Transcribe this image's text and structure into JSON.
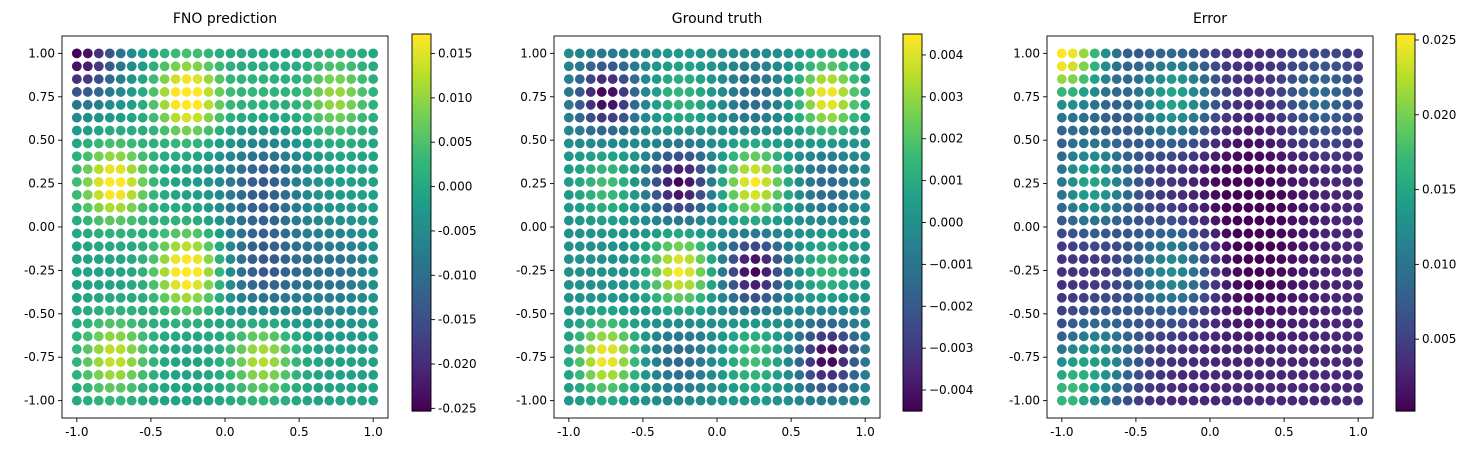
{
  "chart_data": [
    {
      "type": "scatter",
      "title": "FNO prediction",
      "xlabel": "",
      "ylabel": "",
      "grid": false,
      "grid_points": 28,
      "xlim": [
        -1.1,
        1.1
      ],
      "ylim": [
        -1.1,
        1.1
      ],
      "xticks": [
        "-1.0",
        "-0.5",
        "0.0",
        "0.5",
        "1.0"
      ],
      "yticks": [
        "1.00",
        "0.75",
        "0.50",
        "0.25",
        "0.00",
        "-0.25",
        "-0.50",
        "-0.75",
        "-1.00"
      ],
      "colormap": "viridis",
      "colorbar": {
        "range": [
          -0.0253,
          0.0172
        ],
        "ticks": [
          "0.015",
          "0.010",
          "0.005",
          "0.000",
          "-0.005",
          "-0.010",
          "-0.015",
          "-0.020",
          "-0.025"
        ]
      },
      "field": {
        "base": -0.001,
        "bumps": [
          {
            "x": -0.25,
            "y": 0.75,
            "amp": 0.022,
            "sigma": 0.15
          },
          {
            "x": -0.75,
            "y": 0.25,
            "amp": 0.02,
            "sigma": 0.15
          },
          {
            "x": -0.25,
            "y": -0.25,
            "amp": 0.022,
            "sigma": 0.15
          },
          {
            "x": -0.75,
            "y": -0.75,
            "amp": 0.015,
            "sigma": 0.15
          },
          {
            "x": 0.25,
            "y": -0.75,
            "amp": 0.014,
            "sigma": 0.15
          },
          {
            "x": 0.75,
            "y": 0.75,
            "amp": 0.012,
            "sigma": 0.15
          },
          {
            "x": 0.25,
            "y": 0.75,
            "amp": 0.004,
            "sigma": 0.15
          },
          {
            "x": 0.25,
            "y": 0.25,
            "amp": -0.012,
            "sigma": 0.2
          },
          {
            "x": 0.25,
            "y": -0.25,
            "amp": -0.012,
            "sigma": 0.2
          },
          {
            "x": 0.75,
            "y": -0.25,
            "amp": -0.008,
            "sigma": 0.2
          },
          {
            "x": -1.0,
            "y": 1.0,
            "amp": -0.024,
            "sigma": 0.2
          }
        ]
      }
    },
    {
      "type": "scatter",
      "title": "Ground truth",
      "xlabel": "",
      "ylabel": "",
      "grid": false,
      "grid_points": 28,
      "xlim": [
        -1.1,
        1.1
      ],
      "ylim": [
        -1.1,
        1.1
      ],
      "xticks": [
        "-1.0",
        "-0.5",
        "0.0",
        "0.5",
        "1.0"
      ],
      "yticks": [
        "1.00",
        "0.75",
        "0.50",
        "0.25",
        "0.00",
        "-0.25",
        "-0.50",
        "-0.75",
        "-1.00"
      ],
      "colormap": "viridis",
      "colorbar": {
        "range": [
          -0.0045,
          0.0045
        ],
        "ticks": [
          "0.004",
          "0.003",
          "0.002",
          "0.001",
          "0.000",
          "−0.001",
          "−0.002",
          "−0.003",
          "−0.004"
        ]
      },
      "field": {
        "base": 0.0,
        "bumps": [
          {
            "x": 0.75,
            "y": 0.75,
            "amp": 0.0045,
            "sigma": 0.14
          },
          {
            "x": 0.25,
            "y": 0.25,
            "amp": 0.0045,
            "sigma": 0.14
          },
          {
            "x": -0.25,
            "y": -0.25,
            "amp": 0.0045,
            "sigma": 0.14
          },
          {
            "x": -0.75,
            "y": -0.75,
            "amp": 0.0045,
            "sigma": 0.14
          },
          {
            "x": -0.75,
            "y": 0.25,
            "amp": 0.0018,
            "sigma": 0.14
          },
          {
            "x": -0.25,
            "y": 0.75,
            "amp": 0.0015,
            "sigma": 0.14
          },
          {
            "x": 0.25,
            "y": -0.75,
            "amp": 0.0018,
            "sigma": 0.14
          },
          {
            "x": 0.75,
            "y": -0.25,
            "amp": 0.0015,
            "sigma": 0.14
          },
          {
            "x": -0.75,
            "y": 0.75,
            "amp": -0.0045,
            "sigma": 0.14
          },
          {
            "x": -0.25,
            "y": 0.25,
            "amp": -0.0045,
            "sigma": 0.14
          },
          {
            "x": 0.25,
            "y": -0.25,
            "amp": -0.0045,
            "sigma": 0.14
          },
          {
            "x": 0.75,
            "y": -0.75,
            "amp": -0.0045,
            "sigma": 0.14
          },
          {
            "x": -0.25,
            "y": -0.75,
            "amp": -0.0015,
            "sigma": 0.14
          },
          {
            "x": 0.25,
            "y": 0.75,
            "amp": -0.0015,
            "sigma": 0.14
          },
          {
            "x": 0.75,
            "y": 0.25,
            "amp": -0.0015,
            "sigma": 0.14
          }
        ]
      }
    },
    {
      "type": "scatter",
      "title": "Error",
      "xlabel": "",
      "ylabel": "",
      "grid": false,
      "grid_points": 28,
      "xlim": [
        -1.1,
        1.1
      ],
      "ylim": [
        -1.1,
        1.1
      ],
      "xticks": [
        "-1.0",
        "-0.5",
        "0.0",
        "0.5",
        "1.0"
      ],
      "yticks": [
        "1.00",
        "0.75",
        "0.50",
        "0.25",
        "0.00",
        "-0.25",
        "-0.50",
        "-0.75",
        "-1.00"
      ],
      "colormap": "viridis",
      "colorbar": {
        "range": [
          0.0002,
          0.0254
        ],
        "ticks": [
          "0.025",
          "0.020",
          "0.015",
          "0.010",
          "0.005"
        ]
      },
      "field": {
        "base": 0.003,
        "bumps": [
          {
            "x": -1.0,
            "y": 1.0,
            "amp": 0.023,
            "sigma": 0.22
          },
          {
            "x": -0.8,
            "y": 0.25,
            "amp": 0.012,
            "sigma": 0.2
          },
          {
            "x": -0.25,
            "y": 0.75,
            "amp": 0.012,
            "sigma": 0.2
          },
          {
            "x": -0.25,
            "y": -0.25,
            "amp": 0.01,
            "sigma": 0.2
          },
          {
            "x": -0.75,
            "y": -0.75,
            "amp": 0.009,
            "sigma": 0.2
          },
          {
            "x": -1.0,
            "y": -1.0,
            "amp": 0.012,
            "sigma": 0.18
          },
          {
            "x": 0.75,
            "y": 0.75,
            "amp": 0.006,
            "sigma": 0.2
          },
          {
            "x": 0.25,
            "y": 0.25,
            "amp": -0.003,
            "sigma": 0.25
          },
          {
            "x": 0.25,
            "y": -0.25,
            "amp": -0.003,
            "sigma": 0.25
          }
        ]
      }
    }
  ]
}
